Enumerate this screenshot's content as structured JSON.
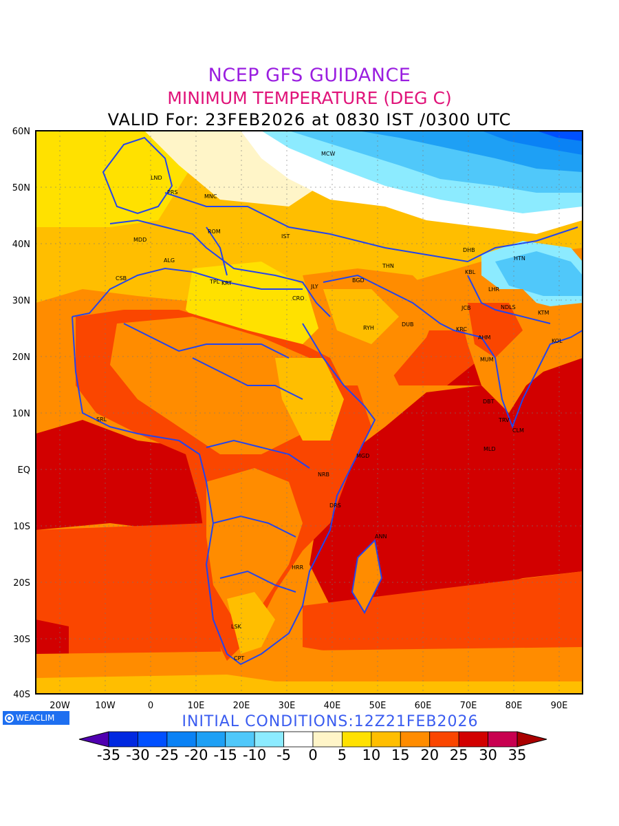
{
  "title": {
    "line1": "NCEP GFS GUIDANCE",
    "line2": "MINIMUM TEMPERATURE (DEG C)",
    "line3": "VALID For: 23FEB2026 at 0830 IST /0300 UTC"
  },
  "lat_labels": [
    "60N",
    "50N",
    "40N",
    "30N",
    "20N",
    "10N",
    "EQ",
    "10S",
    "20S",
    "30S",
    "40S"
  ],
  "lon_labels": [
    "20W",
    "10W",
    "0",
    "10E",
    "20E",
    "30E",
    "40E",
    "50E",
    "60E",
    "70E",
    "80E",
    "90E"
  ],
  "cities": [
    "LND",
    "PRS",
    "MNC",
    "MCW",
    "MDD",
    "ROM",
    "IST",
    "ALG",
    "TPL",
    "KRT",
    "CRO",
    "JLY",
    "BGD",
    "THN",
    "DHB",
    "HTN",
    "KBL",
    "LHR",
    "JCB",
    "NDLS",
    "KTM",
    "CSB",
    "RYH",
    "DUB",
    "KRC",
    "AHM",
    "KOL",
    "MUM",
    "DBT",
    "TRV",
    "CLM",
    "SRL",
    "MLD",
    "MGD",
    "NRB",
    "DRS",
    "ANN",
    "HRR",
    "LSK",
    "CPT"
  ],
  "legend": {
    "tick_labels": [
      "-35",
      "-30",
      "-25",
      "-20",
      "-15",
      "-10",
      "-5",
      "0",
      "5",
      "10",
      "15",
      "20",
      "25",
      "30",
      "35"
    ],
    "colors": [
      "#5000b0",
      "#0028e0",
      "#0050ff",
      "#0a82f5",
      "#1ea0f5",
      "#50c8fa",
      "#8cebff",
      "#ffffff",
      "#fff5c8",
      "#ffe100",
      "#ffbe00",
      "#ff8c00",
      "#fa4600",
      "#d20000",
      "#c80050",
      "#aa0000"
    ]
  },
  "initial_conditions": "INITIAL  CONDITIONS:12Z21FEB2026",
  "logo_text": "WEACLIM",
  "colors": {
    "title1": "#9a1ee0",
    "title2": "#e0147a",
    "initial": "#3a5cf0",
    "borders": "#2244ee"
  }
}
